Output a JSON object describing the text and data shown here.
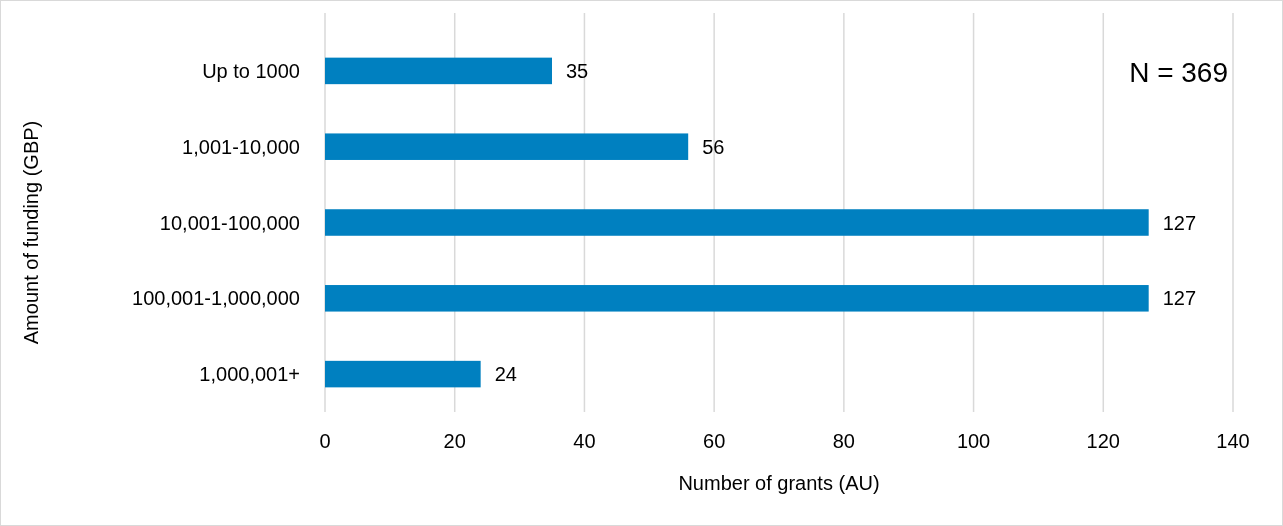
{
  "chart_data": {
    "type": "bar",
    "orientation": "horizontal",
    "categories": [
      "Up to 1000",
      "1,001-10,000",
      "10,001-100,000",
      "100,001-1,000,000",
      "1,000,001+"
    ],
    "values": [
      35,
      56,
      127,
      127,
      24
    ],
    "color": "#0080c0",
    "xlim": [
      0,
      140
    ],
    "xticks": [
      0,
      20,
      40,
      60,
      80,
      100,
      120,
      140
    ],
    "xlabel": "Number of grants (AU)",
    "ylabel": "Amount of funding (GBP)",
    "annotations": [
      "N = 369"
    ],
    "data_labels": true,
    "grid": "x"
  }
}
